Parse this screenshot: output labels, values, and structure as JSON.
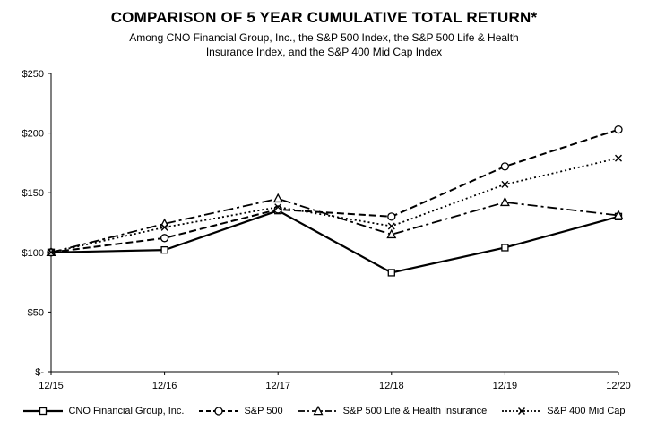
{
  "title": "COMPARISON OF 5 YEAR CUMULATIVE TOTAL RETURN*",
  "subtitle_line1": "Among CNO Financial Group, Inc., the S&P 500 Index, the S&P 500 Life & Health",
  "subtitle_line2": "Insurance Index, and the S&P 400 Mid Cap Index",
  "chart_data": {
    "type": "line",
    "categories": [
      "12/15",
      "12/16",
      "12/17",
      "12/18",
      "12/19",
      "12/20"
    ],
    "series": [
      {
        "name": "CNO Financial Group, Inc.",
        "values": [
          100,
          102,
          135,
          83,
          104,
          130
        ],
        "dash": "solid",
        "marker": "square"
      },
      {
        "name": "S&P 500",
        "values": [
          100,
          112,
          136,
          130,
          172,
          203
        ],
        "dash": "dashed",
        "marker": "circle"
      },
      {
        "name": "S&P 500 Life & Health Insurance",
        "values": [
          100,
          124,
          145,
          115,
          142,
          131
        ],
        "dash": "dashdot",
        "marker": "triangle"
      },
      {
        "name": "S&P 400 Mid Cap",
        "values": [
          100,
          121,
          138,
          122,
          157,
          179
        ],
        "dash": "dotted",
        "marker": "x"
      }
    ],
    "xlabel": "",
    "ylabel": "",
    "ylim": [
      0,
      250
    ],
    "ytick_values": [
      0,
      50,
      100,
      150,
      200,
      250
    ],
    "ytick_labels": [
      "$-",
      "$50",
      "$100",
      "$150",
      "$200",
      "$250"
    ],
    "grid": false,
    "legend_position": "bottom",
    "line_color": "#000000",
    "background_color": "#ffffff"
  }
}
